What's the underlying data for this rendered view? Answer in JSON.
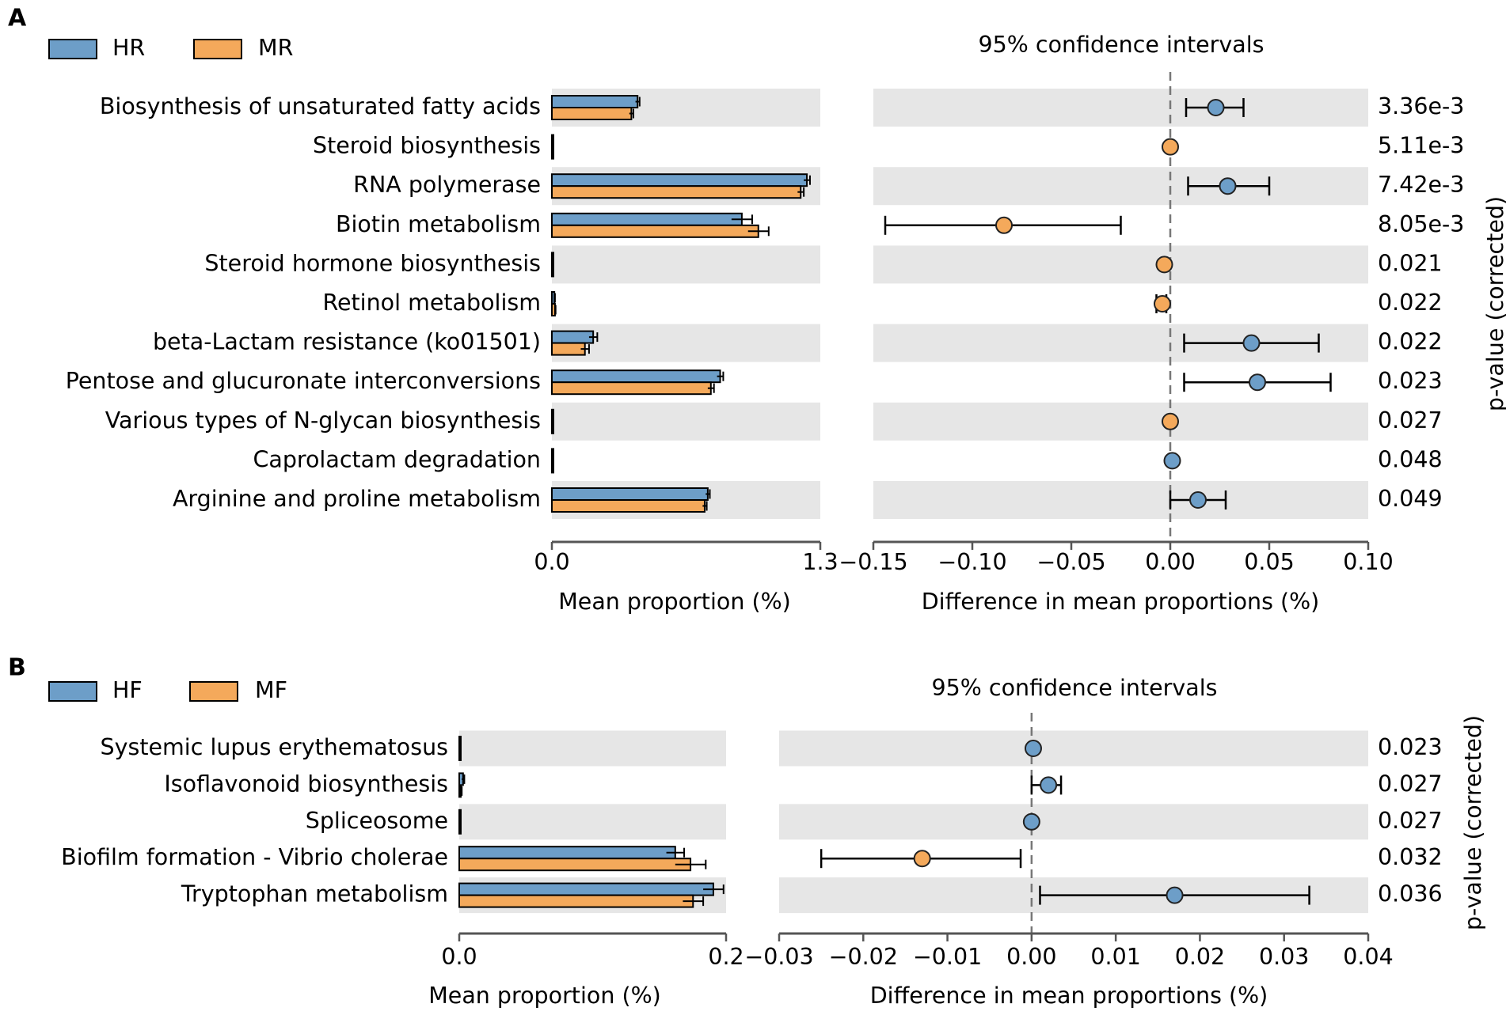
{
  "colors": {
    "group1": "#6d9ec8",
    "group2": "#f4a95b",
    "stripe": "#e6e6e6",
    "axis": "#555555",
    "ink": "#000000"
  },
  "chart_data": [
    {
      "panel": "A",
      "type": "bar+errorbar",
      "legend": [
        "HR",
        "MR"
      ],
      "ci_title": "95% confidence intervals",
      "bar_xlabel": "Mean proportion (%)",
      "diff_xlabel": "Difference in mean proportions (%)",
      "pvalue_label": "p-value (corrected)",
      "bar_xlim": [
        0,
        1.3
      ],
      "bar_ticks": [
        "0.0",
        "1.3"
      ],
      "diff_xlim": [
        -0.15,
        0.1
      ],
      "diff_ticks": [
        -0.15,
        -0.1,
        -0.05,
        0.0,
        0.05,
        0.1
      ],
      "diff_tick_labels": [
        "−0.15",
        "−0.10",
        "−0.05",
        "0.00",
        "0.05",
        "0.10"
      ],
      "categories": [
        "Biosynthesis of unsaturated fatty acids",
        "Steroid biosynthesis",
        "RNA polymerase",
        "Biotin metabolism",
        "Steroid hormone biosynthesis",
        "Retinol metabolism",
        "beta-Lactam resistance (ko01501)",
        "Pentose and glucuronate interconversions",
        "Various types of N-glycan biosynthesis",
        "Caprolactam degradation",
        "Arginine and proline metabolism"
      ],
      "series": [
        {
          "name": "HR",
          "values": [
            0.415,
            0.002,
            1.235,
            0.92,
            0.006,
            0.012,
            0.2,
            0.815,
            0.003,
            0.006,
            0.755
          ],
          "errors": [
            0.01,
            0,
            0.015,
            0.05,
            0,
            0.003,
            0.02,
            0.015,
            0,
            0,
            0.01
          ]
        },
        {
          "name": "MR",
          "values": [
            0.385,
            0.003,
            1.205,
            1.0,
            0.007,
            0.015,
            0.16,
            0.77,
            0.004,
            0.006,
            0.74
          ],
          "errors": [
            0.01,
            0,
            0.015,
            0.05,
            0,
            0.003,
            0.02,
            0.015,
            0,
            0,
            0.01
          ]
        }
      ],
      "differences": [
        {
          "mean": 0.023,
          "low": 0.008,
          "high": 0.037,
          "favors": "HR"
        },
        {
          "mean": 0.0,
          "low": 0.0,
          "high": 0.0,
          "favors": "MR"
        },
        {
          "mean": 0.029,
          "low": 0.009,
          "high": 0.05,
          "favors": "HR"
        },
        {
          "mean": -0.084,
          "low": -0.144,
          "high": -0.025,
          "favors": "MR"
        },
        {
          "mean": -0.003,
          "low": -0.003,
          "high": -0.003,
          "favors": "MR"
        },
        {
          "mean": -0.004,
          "low": -0.007,
          "high": -0.002,
          "favors": "MR"
        },
        {
          "mean": 0.041,
          "low": 0.007,
          "high": 0.075,
          "favors": "HR"
        },
        {
          "mean": 0.044,
          "low": 0.007,
          "high": 0.081,
          "favors": "HR"
        },
        {
          "mean": 0.0,
          "low": 0.0,
          "high": 0.0,
          "favors": "MR"
        },
        {
          "mean": 0.001,
          "low": 0.001,
          "high": 0.001,
          "favors": "HR"
        },
        {
          "mean": 0.014,
          "low": 0.0,
          "high": 0.028,
          "favors": "HR"
        }
      ],
      "pvalues": [
        "3.36e-3",
        "5.11e-3",
        "7.42e-3",
        "8.05e-3",
        "0.021",
        "0.022",
        "0.022",
        "0.023",
        "0.027",
        "0.048",
        "0.049"
      ]
    },
    {
      "panel": "B",
      "type": "bar+errorbar",
      "legend": [
        "HF",
        "MF"
      ],
      "ci_title": "95% confidence intervals",
      "bar_xlabel": "Mean proportion (%)",
      "diff_xlabel": "Difference in mean proportions (%)",
      "pvalue_label": "p-value (corrected)",
      "bar_xlim": [
        0,
        0.21
      ],
      "bar_ticks": [
        "0.0",
        "0.2"
      ],
      "diff_xlim": [
        -0.03,
        0.04
      ],
      "diff_ticks": [
        -0.03,
        -0.02,
        -0.01,
        0.0,
        0.01,
        0.02,
        0.03,
        0.04
      ],
      "diff_tick_labels": [
        "−0.03",
        "−0.02",
        "−0.01",
        "0.00",
        "0.01",
        "0.02",
        "0.03",
        "0.04"
      ],
      "categories": [
        "Systemic lupus erythematosus",
        "Isoflavonoid biosynthesis",
        "Spliceosome",
        "Biofilm formation - Vibrio cholerae",
        "Tryptophan metabolism"
      ],
      "series": [
        {
          "name": "HF",
          "values": [
            0.0005,
            0.003,
            0.0005,
            0.17,
            0.2
          ],
          "errors": [
            0,
            0.001,
            0,
            0.007,
            0.008
          ]
        },
        {
          "name": "MF",
          "values": [
            0.0005,
            0.001,
            0.0005,
            0.182,
            0.184
          ],
          "errors": [
            0,
            0.001,
            0,
            0.012,
            0.008
          ]
        }
      ],
      "differences": [
        {
          "mean": 0.0002,
          "low": 0.0002,
          "high": 0.0002,
          "favors": "HF"
        },
        {
          "mean": 0.002,
          "low": 0.0,
          "high": 0.0035,
          "favors": "HF"
        },
        {
          "mean": 0.0,
          "low": 0.0,
          "high": 0.0,
          "favors": "HF"
        },
        {
          "mean": -0.013,
          "low": -0.025,
          "high": -0.0013,
          "favors": "MF"
        },
        {
          "mean": 0.017,
          "low": 0.001,
          "high": 0.033,
          "favors": "HF"
        }
      ],
      "pvalues": [
        "0.023",
        "0.027",
        "0.027",
        "0.032",
        "0.036"
      ]
    }
  ],
  "panel_labels": [
    "A",
    "B"
  ]
}
